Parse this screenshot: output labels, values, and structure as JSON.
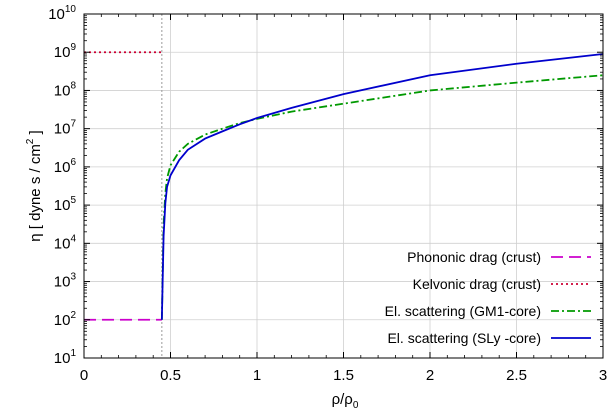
{
  "chart_data": {
    "type": "line",
    "xlabel": {
      "base": "ρ/ρ",
      "sub": "0"
    },
    "ylabel": {
      "prefix": "η  [ dyne s / cm",
      "sup": "2",
      "suffix": " ]"
    },
    "xlim": [
      0,
      3
    ],
    "y_log_exp": [
      1,
      10
    ],
    "y_scale": "log",
    "grid": true,
    "legend_position": "bottom-right",
    "x_ticks": [
      {
        "value": 0,
        "label": "0"
      },
      {
        "value": 0.5,
        "label": "0.5"
      },
      {
        "value": 1,
        "label": "1"
      },
      {
        "value": 1.5,
        "label": "1.5"
      },
      {
        "value": 2,
        "label": "2"
      },
      {
        "value": 2.5,
        "label": "2.5"
      },
      {
        "value": 3,
        "label": "3"
      }
    ],
    "y_ticks": [
      {
        "exp": 1,
        "base": "10",
        "sup": "1"
      },
      {
        "exp": 2,
        "base": "10",
        "sup": "2"
      },
      {
        "exp": 3,
        "base": "10",
        "sup": "3"
      },
      {
        "exp": 4,
        "base": "10",
        "sup": "4"
      },
      {
        "exp": 5,
        "base": "10",
        "sup": "5"
      },
      {
        "exp": 6,
        "base": "10",
        "sup": "6"
      },
      {
        "exp": 7,
        "base": "10",
        "sup": "7"
      },
      {
        "exp": 8,
        "base": "10",
        "sup": "8"
      },
      {
        "exp": 9,
        "base": "10",
        "sup": "9"
      },
      {
        "exp": 10,
        "base": "10",
        "sup": "10"
      }
    ],
    "vline_x": 0.45,
    "series": [
      {
        "name": "Phononic drag (crust)",
        "color": "#cc00cc",
        "style": "dashed",
        "x": [
          0,
          0.45
        ],
        "y": [
          100,
          100
        ]
      },
      {
        "name": "Kelvonic drag (crust)",
        "color": "#cc0033",
        "style": "dotted",
        "x": [
          0,
          0.45
        ],
        "y": [
          1000000000.0,
          1000000000.0
        ]
      },
      {
        "name": "El. scattering (GM1-core)",
        "color": "#009900",
        "style": "dashdot",
        "x": [
          0.45,
          0.46,
          0.47,
          0.48,
          0.5,
          0.55,
          0.6,
          0.7,
          0.8,
          0.9,
          1.0,
          1.2,
          1.5,
          2.0,
          2.5,
          3.0
        ],
        "y": [
          100,
          30000.0,
          200000.0,
          500000.0,
          1100000.0,
          2500000.0,
          4000000.0,
          7000000.0,
          10000000.0,
          14000000.0,
          18000000.0,
          28000000.0,
          45000000.0,
          100000000.0,
          160000000.0,
          250000000.0
        ]
      },
      {
        "name": "El. scattering (SLy -core)",
        "color": "#0000cc",
        "style": "solid",
        "x": [
          0.45,
          0.46,
          0.47,
          0.48,
          0.5,
          0.55,
          0.6,
          0.7,
          0.8,
          0.9,
          1.0,
          1.2,
          1.5,
          2.0,
          2.5,
          3.0
        ],
        "y": [
          100,
          15000.0,
          110000.0,
          300000.0,
          600000.0,
          1500000.0,
          2800000.0,
          5500000.0,
          8500000.0,
          13000000.0,
          19000000.0,
          35000000.0,
          80000000.0,
          250000000.0,
          500000000.0,
          900000000.0
        ]
      }
    ]
  }
}
